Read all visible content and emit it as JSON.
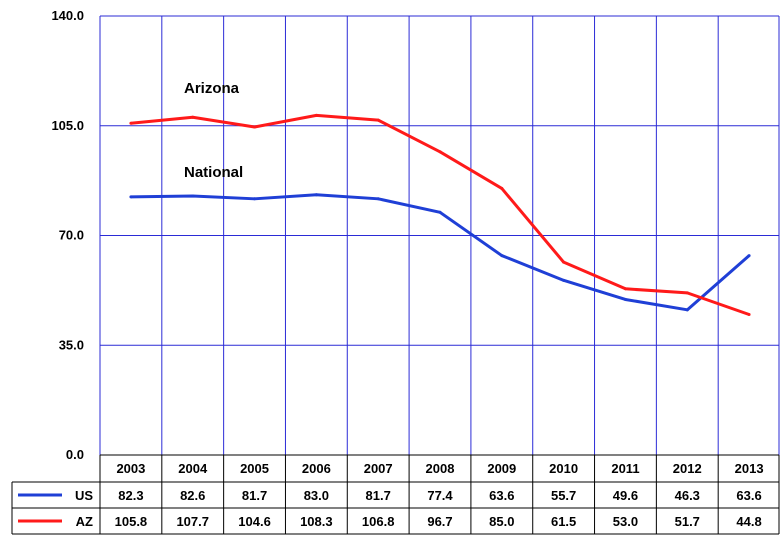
{
  "chart_data": {
    "type": "line",
    "title": "",
    "xlabel": "",
    "ylabel": "",
    "ylim": [
      0,
      140
    ],
    "yticks": [
      "0.0",
      "35.0",
      "70.0",
      "105.0",
      "140.0"
    ],
    "grid": true,
    "categories": [
      "2003",
      "2004",
      "2005",
      "2006",
      "2007",
      "2008",
      "2009",
      "2010",
      "2011",
      "2012",
      "2013"
    ],
    "series": [
      {
        "name": "US",
        "label": "National",
        "color": "#1f3fd6",
        "values": [
          82.3,
          82.6,
          81.7,
          83.0,
          81.7,
          77.4,
          63.6,
          55.7,
          49.6,
          46.3,
          63.6
        ],
        "value_labels": [
          "82.3",
          "82.6",
          "81.7",
          "83.0",
          "81.7",
          "77.4",
          "63.6",
          "55.7",
          "49.6",
          "46.3",
          "63.6"
        ]
      },
      {
        "name": "AZ",
        "label": "Arizona",
        "color": "#ff1a1a",
        "values": [
          105.8,
          107.7,
          104.6,
          108.3,
          106.8,
          96.7,
          85.0,
          61.5,
          53.0,
          51.7,
          44.8
        ],
        "value_labels": [
          "105.8",
          "107.7",
          "104.6",
          "108.3",
          "106.8",
          "96.7",
          "85.0",
          "61.5",
          "53.0",
          "51.7",
          "44.8"
        ]
      }
    ],
    "annotations": [
      "Arizona",
      "National"
    ]
  },
  "colors": {
    "grid": "#2b2bd6",
    "table_border": "#000000"
  }
}
